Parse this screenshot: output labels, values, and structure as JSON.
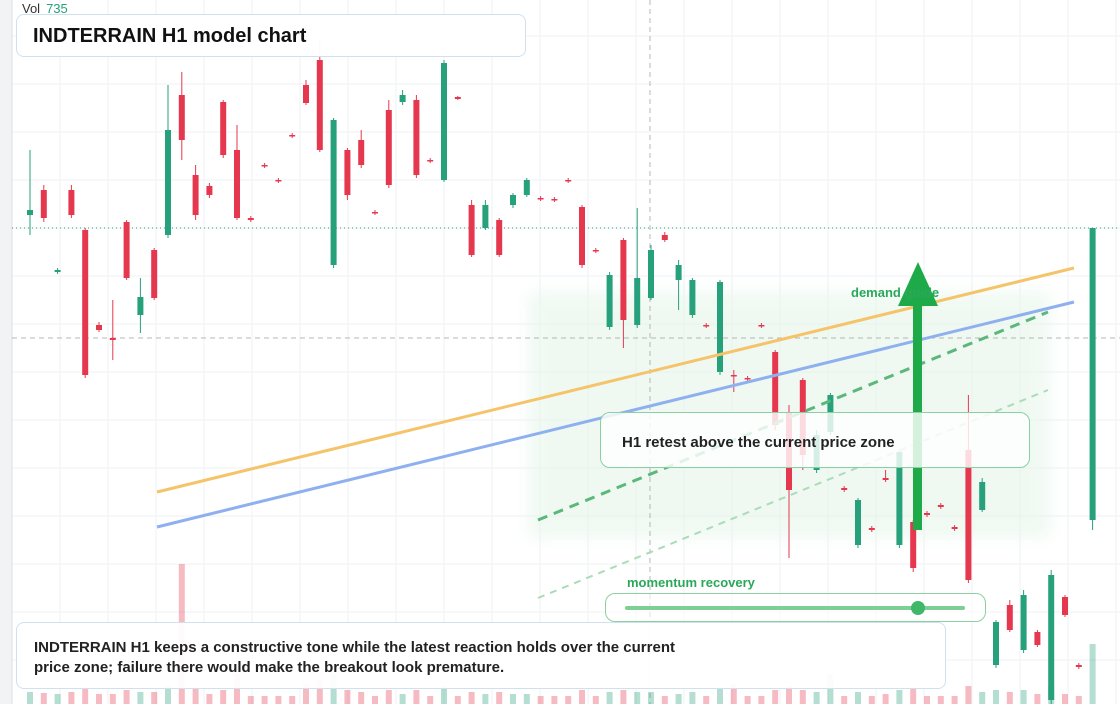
{
  "header": {
    "vol_label": "Vol",
    "vol_value": 735,
    "title": "INDTERRAIN H1 model chart"
  },
  "chart_data": {
    "type": "candlestick",
    "up_color": "#26a17b",
    "down_color": "#e5384f",
    "ylim": [
      0,
      704
    ],
    "y2lim": [
      0,
      1000
    ],
    "open": [
      489,
      514,
      432,
      514,
      474,
      379,
      366,
      482,
      389,
      454,
      469,
      609,
      529,
      518,
      602,
      554,
      486,
      539,
      524,
      569,
      619,
      644,
      439,
      554,
      564,
      492,
      594,
      602,
      604,
      544,
      524,
      607,
      499,
      476,
      484,
      499,
      509,
      506,
      505,
      524,
      497,
      454,
      377,
      464,
      379,
      406,
      469,
      424,
      389,
      379,
      332,
      329,
      326,
      379,
      352,
      292,
      324,
      234,
      272,
      216,
      159,
      176,
      226,
      159,
      182,
      191,
      199,
      177,
      254,
      194,
      39,
      99,
      54,
      72,
      4,
      107,
      39,
      184
    ],
    "high": [
      554,
      519,
      436,
      519,
      476,
      382,
      404,
      484,
      426,
      456,
      619,
      632,
      539,
      521,
      604,
      579,
      488,
      541,
      526,
      571,
      624,
      664,
      586,
      556,
      574,
      494,
      604,
      614,
      609,
      546,
      644,
      608,
      504,
      504,
      486,
      511,
      526,
      508,
      507,
      526,
      499,
      456,
      432,
      466,
      496,
      459,
      472,
      444,
      426,
      381,
      424,
      334,
      328,
      381,
      354,
      299,
      326,
      274,
      311,
      218,
      206,
      178,
      234,
      254,
      184,
      193,
      201,
      179,
      309,
      226,
      84,
      104,
      114,
      74,
      134,
      109,
      41,
      476
    ],
    "low": [
      469,
      482,
      430,
      486,
      326,
      372,
      344,
      424,
      371,
      404,
      466,
      544,
      484,
      506,
      546,
      484,
      482,
      536,
      521,
      566,
      599,
      552,
      436,
      504,
      536,
      489,
      516,
      599,
      526,
      541,
      522,
      604,
      447,
      474,
      447,
      496,
      507,
      503,
      502,
      521,
      436,
      451,
      374,
      356,
      376,
      404,
      462,
      394,
      386,
      376,
      329,
      312,
      323,
      376,
      274,
      146,
      234,
      231,
      269,
      212,
      156,
      172,
      222,
      156,
      132,
      187,
      195,
      173,
      121,
      192,
      36,
      72,
      51,
      57,
      0,
      87,
      35,
      174
    ],
    "close": [
      494,
      486,
      434,
      489,
      329,
      374,
      364,
      426,
      407,
      406,
      574,
      564,
      489,
      509,
      549,
      486,
      484,
      538,
      523,
      568,
      601,
      554,
      584,
      509,
      539,
      491,
      519,
      609,
      529,
      543,
      641,
      605,
      449,
      499,
      449,
      509,
      524,
      505,
      504,
      523,
      439,
      453,
      429,
      384,
      426,
      454,
      464,
      439,
      424,
      378,
      422,
      328,
      325,
      378,
      279,
      214,
      249,
      269,
      309,
      214,
      204,
      174,
      224,
      252,
      136,
      189,
      197,
      175,
      124,
      222,
      82,
      74,
      109,
      59,
      129,
      89,
      37,
      476
    ],
    "volume": [
      60,
      55,
      50,
      60,
      80,
      50,
      50,
      70,
      60,
      60,
      90,
      700,
      80,
      50,
      70,
      150,
      40,
      40,
      40,
      40,
      100,
      120,
      150,
      70,
      60,
      40,
      70,
      50,
      70,
      40,
      90,
      40,
      60,
      50,
      60,
      50,
      50,
      40,
      40,
      40,
      70,
      40,
      60,
      70,
      60,
      60,
      40,
      50,
      60,
      40,
      80,
      100,
      40,
      40,
      70,
      90,
      70,
      60,
      150,
      40,
      60,
      40,
      50,
      70,
      80,
      40,
      40,
      40,
      90,
      60,
      70,
      60,
      70,
      50,
      90,
      50,
      40,
      300
    ]
  },
  "annotations": {
    "zone_label": "demand guide",
    "retest_note": "H1 retest above the current price zone",
    "slider_label": "momentum recovery"
  },
  "footer": {
    "lines": [
      "INDTERRAIN H1 keeps a constructive tone while the latest reaction holds over the current",
      "price zone; failure there would make the breakout look premature."
    ]
  }
}
